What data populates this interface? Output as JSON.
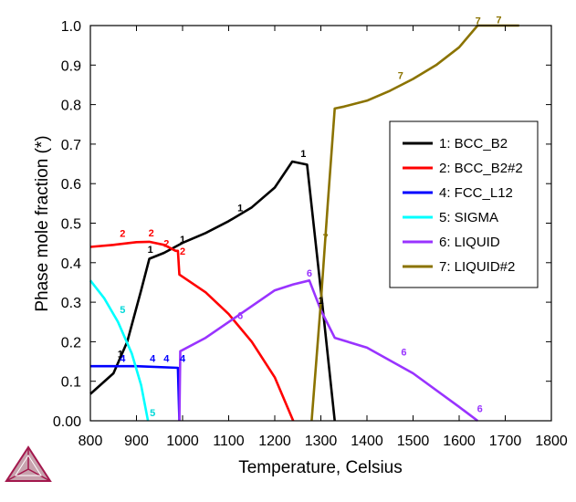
{
  "chart_data": {
    "type": "line",
    "title": "",
    "xlabel": "Temperature, Celsius",
    "ylabel": "Phase mole fraction (*)",
    "xlim": [
      800,
      1800
    ],
    "ylim": [
      0,
      1.0
    ],
    "x_ticks": [
      "800",
      "900",
      "1000",
      "1100",
      "1200",
      "1300",
      "1400",
      "1500",
      "1600",
      "1700",
      "1800"
    ],
    "y_ticks": [
      "0.00",
      "0.1",
      "0.2",
      "0.3",
      "0.4",
      "0.5",
      "0.6",
      "0.7",
      "0.8",
      "0.9",
      "1.0"
    ],
    "grid": false,
    "legend_position": "right",
    "series": [
      {
        "name": "1: BCC_B2",
        "color": "#000000",
        "points": [
          [
            800,
            0.068
          ],
          [
            850,
            0.12
          ],
          [
            880,
            0.2
          ],
          [
            910,
            0.33
          ],
          [
            928,
            0.41
          ],
          [
            960,
            0.425
          ],
          [
            1000,
            0.45
          ],
          [
            1050,
            0.475
          ],
          [
            1100,
            0.505
          ],
          [
            1150,
            0.54
          ],
          [
            1200,
            0.59
          ],
          [
            1238,
            0.656
          ],
          [
            1270,
            0.648
          ],
          [
            1300,
            0.33
          ],
          [
            1330,
            0.0
          ]
        ],
        "labels": [
          [
            865,
            0.16
          ],
          [
            930,
            0.425
          ],
          [
            1000,
            0.45
          ],
          [
            1125,
            0.53
          ],
          [
            1262,
            0.668
          ],
          [
            1300,
            0.296
          ]
        ]
      },
      {
        "name": "2: BCC_B2#2",
        "color": "#ff0000",
        "points": [
          [
            800,
            0.44
          ],
          [
            850,
            0.445
          ],
          [
            900,
            0.452
          ],
          [
            928,
            0.453
          ],
          [
            960,
            0.445
          ],
          [
            985,
            0.43
          ],
          [
            990,
            0.43
          ],
          [
            993,
            0.37
          ],
          [
            1050,
            0.325
          ],
          [
            1100,
            0.27
          ],
          [
            1150,
            0.2
          ],
          [
            1200,
            0.11
          ],
          [
            1240,
            0.0
          ]
        ],
        "labels": [
          [
            870,
            0.465
          ],
          [
            932,
            0.467
          ],
          [
            965,
            0.44
          ],
          [
            1000,
            0.42
          ]
        ]
      },
      {
        "name": "4: FCC_L12",
        "color": "#0000ff",
        "points": [
          [
            800,
            0.138
          ],
          [
            900,
            0.138
          ],
          [
            990,
            0.134
          ],
          [
            993,
            0.0
          ]
        ],
        "labels": [
          [
            870,
            0.149
          ],
          [
            935,
            0.149
          ],
          [
            965,
            0.149
          ],
          [
            1000,
            0.149
          ]
        ]
      },
      {
        "name": "5: SIGMA",
        "color": "#00ffff",
        "points": [
          [
            800,
            0.355
          ],
          [
            830,
            0.31
          ],
          [
            860,
            0.25
          ],
          [
            890,
            0.17
          ],
          [
            910,
            0.09
          ],
          [
            920,
            0.03
          ],
          [
            925,
            0.0
          ]
        ],
        "labels": [
          [
            870,
            0.272
          ],
          [
            935,
            0.012
          ]
        ]
      },
      {
        "name": "6: LIQUID",
        "color": "#9933ff",
        "points": [
          [
            993,
            0.0
          ],
          [
            995,
            0.176
          ],
          [
            1050,
            0.21
          ],
          [
            1100,
            0.25
          ],
          [
            1150,
            0.29
          ],
          [
            1200,
            0.33
          ],
          [
            1240,
            0.345
          ],
          [
            1275,
            0.355
          ],
          [
            1300,
            0.28
          ],
          [
            1330,
            0.21
          ],
          [
            1400,
            0.185
          ],
          [
            1500,
            0.12
          ],
          [
            1600,
            0.035
          ],
          [
            1640,
            0.0
          ]
        ],
        "labels": [
          [
            1125,
            0.257
          ],
          [
            1275,
            0.365
          ],
          [
            1480,
            0.165
          ],
          [
            1645,
            0.022
          ]
        ]
      },
      {
        "name": "7: LIQUID#2",
        "color": "#8b7300",
        "points": [
          [
            1280,
            0.0
          ],
          [
            1300,
            0.3
          ],
          [
            1315,
            0.55
          ],
          [
            1330,
            0.79
          ],
          [
            1350,
            0.795
          ],
          [
            1400,
            0.81
          ],
          [
            1450,
            0.835
          ],
          [
            1500,
            0.865
          ],
          [
            1550,
            0.9
          ],
          [
            1600,
            0.945
          ],
          [
            1640,
            1.0
          ],
          [
            1700,
            1.0
          ],
          [
            1730,
            1.0
          ]
        ],
        "labels": [
          [
            1310,
            0.455
          ],
          [
            1473,
            0.865
          ],
          [
            1641,
            1.003
          ],
          [
            1686,
            1.006
          ]
        ]
      }
    ]
  }
}
